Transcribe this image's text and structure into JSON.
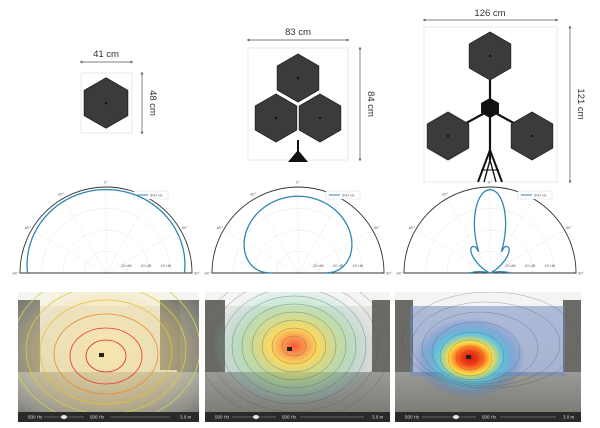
{
  "configs": [
    {
      "width_label": "41 cm",
      "height_label": "48 cm",
      "panels": 1
    },
    {
      "width_label": "83 cm",
      "height_label": "84 cm",
      "panels": 3
    },
    {
      "width_label": "126 cm",
      "height_label": "121 cm",
      "panels": 3
    }
  ],
  "polar": {
    "angle_labels": [
      "0°",
      "30°",
      "-30°",
      "60°",
      "-60°",
      "90°",
      "-90°"
    ],
    "db_labels": [
      "-10 dB",
      "-20 dB",
      "-30 dB"
    ],
    "legend": "500 Hz"
  },
  "heatmaps": [
    {
      "bar_left": "500 Hz",
      "bar_mid": "500 Hz",
      "bar_right": "3.0 m"
    },
    {
      "bar_left": "500 Hz",
      "bar_mid": "500 Hz",
      "bar_right": "3.0 m"
    },
    {
      "bar_left": "500 Hz",
      "bar_mid": "500 Hz",
      "bar_right": "3.0 m"
    }
  ],
  "colors": {
    "hex_fill": "#3a3a3a",
    "polar_curve": "#2f86b5",
    "bar_bg": "#2a2a2a"
  }
}
